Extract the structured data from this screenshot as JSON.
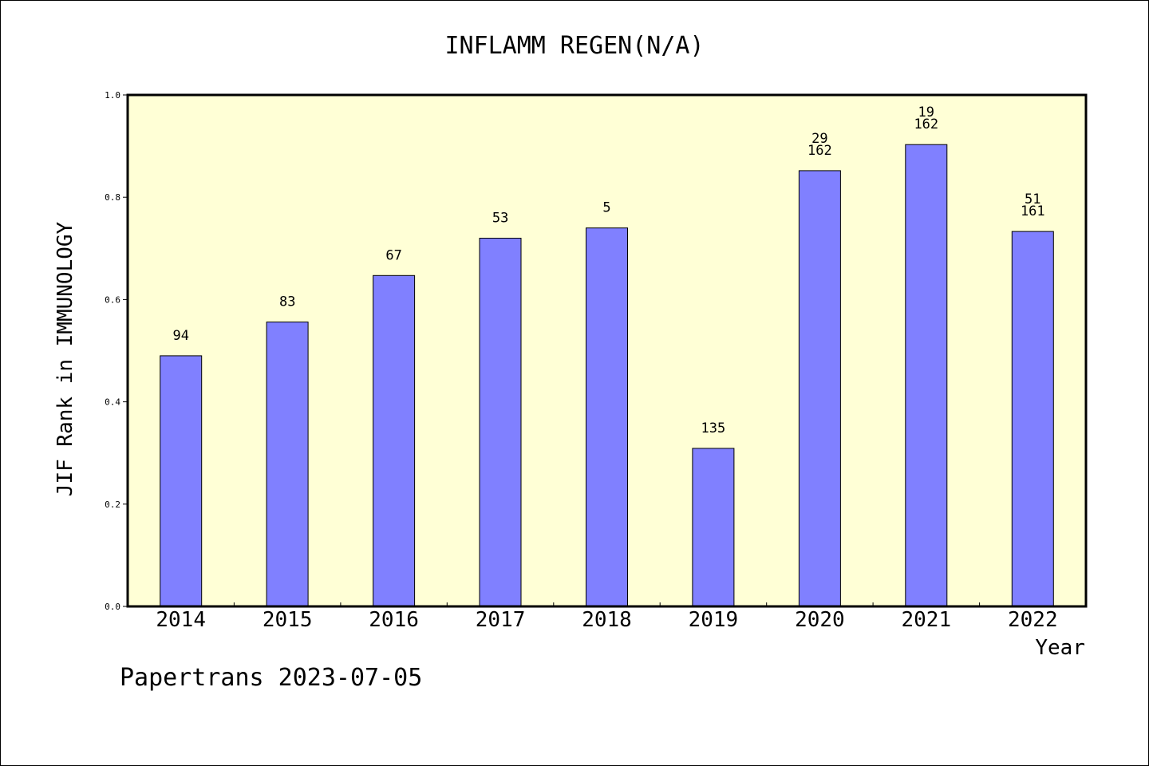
{
  "footer": "Papertrans 2023-07-05",
  "colors": {
    "plot_background": "#ffffd6",
    "bar_fill": "#8080ff",
    "bar_stroke": "#000000"
  },
  "chart_data": {
    "type": "bar",
    "title": "INFLAMM REGEN(N/A)",
    "xlabel": "Year",
    "ylabel": "JIF Rank in IMMUNOLOGY",
    "ylim": [
      0,
      1.0
    ],
    "yticks": [
      0.0,
      0.2,
      0.4,
      0.6,
      0.8,
      1.0
    ],
    "ytick_labels": [
      "0.0",
      "0.2",
      "0.4",
      "0.6",
      "0.8",
      "1.0"
    ],
    "categories": [
      "2014",
      "2015",
      "2016",
      "2017",
      "2018",
      "2019",
      "2020",
      "2021",
      "2022"
    ],
    "values": [
      0.49,
      0.556,
      0.647,
      0.72,
      0.74,
      0.309,
      0.852,
      0.903,
      0.733
    ],
    "labels": [
      [
        "94"
      ],
      [
        "83"
      ],
      [
        "67"
      ],
      [
        "53"
      ],
      [
        "5"
      ],
      [
        "135"
      ],
      [
        "29",
        "162"
      ],
      [
        "19",
        "162"
      ],
      [
        "51",
        "161"
      ]
    ],
    "grid": false,
    "legend": "none"
  }
}
